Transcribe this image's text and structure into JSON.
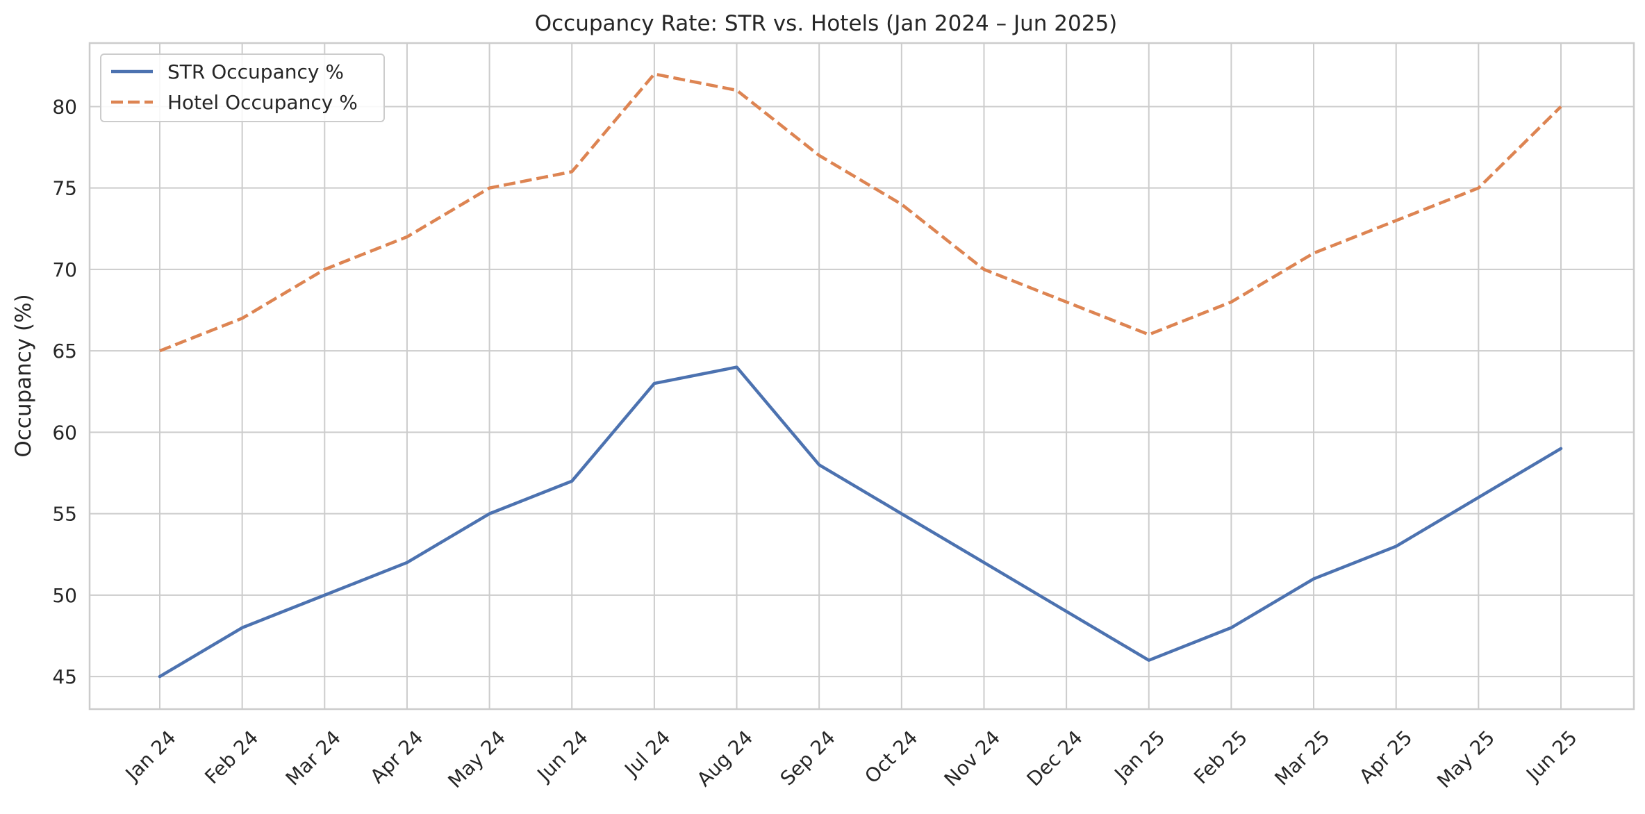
{
  "chart_data": {
    "type": "line",
    "title": "Occupancy Rate: STR vs. Hotels (Jan 2024 – Jun 2025)",
    "xlabel": "",
    "ylabel": "Occupancy (%)",
    "categories": [
      "Jan 24",
      "Feb 24",
      "Mar 24",
      "Apr 24",
      "May 24",
      "Jun 24",
      "Jul 24",
      "Aug 24",
      "Sep 24",
      "Oct 24",
      "Nov 24",
      "Dec 24",
      "Jan 25",
      "Feb 25",
      "Mar 25",
      "Apr 25",
      "May 25",
      "Jun 25"
    ],
    "series": [
      {
        "name": "STR Occupancy %",
        "values": [
          45,
          48,
          50,
          52,
          55,
          57,
          63,
          64,
          58,
          55,
          52,
          49,
          46,
          48,
          51,
          53,
          56,
          59
        ],
        "color": "#4c72b0",
        "style": "solid"
      },
      {
        "name": "Hotel Occupancy %",
        "values": [
          65,
          67,
          70,
          72,
          75,
          76,
          82,
          81,
          77,
          74,
          70,
          68,
          66,
          68,
          71,
          73,
          75,
          80
        ],
        "color": "#dd8452",
        "style": "dashed"
      }
    ],
    "yticks": [
      45,
      50,
      55,
      60,
      65,
      70,
      75,
      80
    ],
    "ylim": [
      43,
      83.9
    ],
    "grid": true,
    "legend_position": "top-left"
  }
}
